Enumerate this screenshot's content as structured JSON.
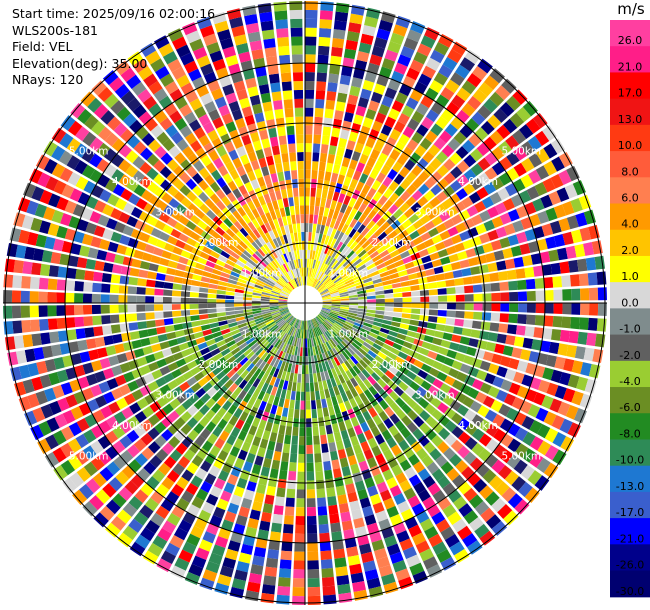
{
  "header": {
    "start_time": "Start time: 2025/09/16 02:00:16",
    "instrument": "WLS200s-181",
    "field": "Field: VEL",
    "elevation": "Elevation(deg): 35.00",
    "nrays": "NRays: 120"
  },
  "colorbar": {
    "unit": "m/s",
    "ticks": [
      "26.0",
      "21.0",
      "17.0",
      "13.0",
      "10.0",
      "8.0",
      "6.0",
      "4.0",
      "2.0",
      "1.0",
      "0.0",
      "-1.0",
      "-2.0",
      "-4.0",
      "-6.0",
      "-8.0",
      "-10.0",
      "-13.0",
      "-17.0",
      "-21.0",
      "-26.0",
      "-30.0"
    ],
    "colors": [
      "#ff3fa0",
      "#ff1e88",
      "#ff0000",
      "#f01414",
      "#ff3a12",
      "#ff5c3a",
      "#ff7f50",
      "#ff9a00",
      "#ffc400",
      "#ffff00",
      "#d8d8d8",
      "#7f8c8d",
      "#606060",
      "#9acd32",
      "#6b8e23",
      "#228b22",
      "#2e8b57",
      "#1e78d2",
      "#3a5fcd",
      "#0000ff",
      "#00008b",
      "#000070",
      "#1a1a6a"
    ]
  },
  "chart_data": {
    "type": "heatmap",
    "subtype": "polar PPI scan",
    "field": "VEL",
    "units": "m/s",
    "elevation_deg": 35.0,
    "n_rays": 120,
    "start_time": "2025/09/16 02:00:16",
    "instrument": "WLS200s-181",
    "range_ring_labels": [
      "1.00km",
      "2.00km",
      "3.00km",
      "4.00km",
      "5.00km"
    ],
    "colorbar_ticks": [
      26.0,
      21.0,
      17.0,
      13.0,
      10.0,
      8.0,
      6.0,
      4.0,
      2.0,
      1.0,
      0.0,
      -1.0,
      -2.0,
      -4.0,
      -6.0,
      -8.0,
      -10.0,
      -13.0,
      -17.0,
      -21.0,
      -26.0,
      -30.0
    ],
    "pattern": {
      "near_range_north": "positive velocities (yellow/orange, ~2 to 6 m/s)",
      "near_range_south": "negative velocities (green, ~-2 to -8 m/s)",
      "far_range": "noisy mixed values across full scale"
    }
  }
}
